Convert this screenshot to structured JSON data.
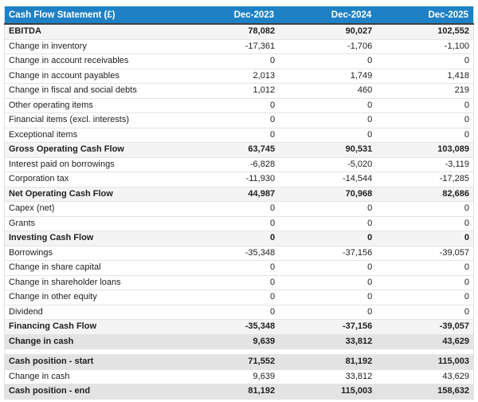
{
  "colors": {
    "header_bg": "#1e81c6",
    "header_text": "#ffffff",
    "subtotal_row_bg": "#f4f4f4",
    "highlight_row_bg": "#e3e3e3",
    "body_text": "#212121",
    "row_border": "#e4e4e4"
  },
  "table": {
    "header": {
      "title": "Cash Flow Statement (£)",
      "columns": [
        "Dec-2023",
        "Dec-2024",
        "Dec-2025"
      ]
    },
    "rows": [
      {
        "label": "EBITDA",
        "values": [
          "78,082",
          "90,027",
          "102,552"
        ],
        "style": "subtotal"
      },
      {
        "label": "Change in inventory",
        "values": [
          "-17,361",
          "-1,706",
          "-1,100"
        ],
        "style": "normal"
      },
      {
        "label": "Change in account receivables",
        "values": [
          "0",
          "0",
          "0"
        ],
        "style": "normal"
      },
      {
        "label": "Change in account payables",
        "values": [
          "2,013",
          "1,749",
          "1,418"
        ],
        "style": "normal"
      },
      {
        "label": "Change in fiscal and social debts",
        "values": [
          "1,012",
          "460",
          "219"
        ],
        "style": "normal"
      },
      {
        "label": "Other operating items",
        "values": [
          "0",
          "0",
          "0"
        ],
        "style": "normal"
      },
      {
        "label": "Financial items (excl. interests)",
        "values": [
          "0",
          "0",
          "0"
        ],
        "style": "normal"
      },
      {
        "label": "Exceptional items",
        "values": [
          "0",
          "0",
          "0"
        ],
        "style": "normal"
      },
      {
        "label": "Gross Operating Cash Flow",
        "values": [
          "63,745",
          "90,531",
          "103,089"
        ],
        "style": "subtotal"
      },
      {
        "label": "Interest paid on borrowings",
        "values": [
          "-6,828",
          "-5,020",
          "-3,119"
        ],
        "style": "normal"
      },
      {
        "label": "Corporation tax",
        "values": [
          "-11,930",
          "-14,544",
          "-17,285"
        ],
        "style": "normal"
      },
      {
        "label": "Net Operating Cash Flow",
        "values": [
          "44,987",
          "70,968",
          "82,686"
        ],
        "style": "subtotal"
      },
      {
        "label": "Capex (net)",
        "values": [
          "0",
          "0",
          "0"
        ],
        "style": "normal"
      },
      {
        "label": "Grants",
        "values": [
          "0",
          "0",
          "0"
        ],
        "style": "normal"
      },
      {
        "label": "Investing Cash Flow",
        "values": [
          "0",
          "0",
          "0"
        ],
        "style": "subtotal"
      },
      {
        "label": "Borrowings",
        "values": [
          "-35,348",
          "-37,156",
          "-39,057"
        ],
        "style": "normal"
      },
      {
        "label": "Change in share capital",
        "values": [
          "0",
          "0",
          "0"
        ],
        "style": "normal"
      },
      {
        "label": "Change in shareholder loans",
        "values": [
          "0",
          "0",
          "0"
        ],
        "style": "normal"
      },
      {
        "label": "Change in other equity",
        "values": [
          "0",
          "0",
          "0"
        ],
        "style": "normal"
      },
      {
        "label": "Dividend",
        "values": [
          "0",
          "0",
          "0"
        ],
        "style": "normal"
      },
      {
        "label": "Financing Cash Flow",
        "values": [
          "-35,348",
          "-37,156",
          "-39,057"
        ],
        "style": "subtotal"
      },
      {
        "label": "Change in cash",
        "values": [
          "9,639",
          "33,812",
          "43,629"
        ],
        "style": "highlight"
      },
      {
        "type": "spacer"
      },
      {
        "label": "Cash position - start",
        "values": [
          "71,552",
          "81,192",
          "115,003"
        ],
        "style": "highlight"
      },
      {
        "label": "Change in cash",
        "values": [
          "9,639",
          "33,812",
          "43,629"
        ],
        "style": "normal"
      },
      {
        "label": "Cash position - end",
        "values": [
          "81,192",
          "115,003",
          "158,632"
        ],
        "style": "highlight"
      }
    ]
  },
  "chart_data": {
    "type": "table",
    "title": "Cash Flow Statement (£)",
    "categories": [
      "Dec-2023",
      "Dec-2024",
      "Dec-2025"
    ],
    "series": [
      {
        "name": "EBITDA",
        "values": [
          78082,
          90027,
          102552
        ]
      },
      {
        "name": "Change in inventory",
        "values": [
          -17361,
          -1706,
          -1100
        ]
      },
      {
        "name": "Change in account receivables",
        "values": [
          0,
          0,
          0
        ]
      },
      {
        "name": "Change in account payables",
        "values": [
          2013,
          1749,
          1418
        ]
      },
      {
        "name": "Change in fiscal and social debts",
        "values": [
          1012,
          460,
          219
        ]
      },
      {
        "name": "Other operating items",
        "values": [
          0,
          0,
          0
        ]
      },
      {
        "name": "Financial items (excl. interests)",
        "values": [
          0,
          0,
          0
        ]
      },
      {
        "name": "Exceptional items",
        "values": [
          0,
          0,
          0
        ]
      },
      {
        "name": "Gross Operating Cash Flow",
        "values": [
          63745,
          90531,
          103089
        ]
      },
      {
        "name": "Interest paid on borrowings",
        "values": [
          -6828,
          -5020,
          -3119
        ]
      },
      {
        "name": "Corporation tax",
        "values": [
          -11930,
          -14544,
          -17285
        ]
      },
      {
        "name": "Net Operating Cash Flow",
        "values": [
          44987,
          70968,
          82686
        ]
      },
      {
        "name": "Capex (net)",
        "values": [
          0,
          0,
          0
        ]
      },
      {
        "name": "Grants",
        "values": [
          0,
          0,
          0
        ]
      },
      {
        "name": "Investing Cash Flow",
        "values": [
          0,
          0,
          0
        ]
      },
      {
        "name": "Borrowings",
        "values": [
          -35348,
          -37156,
          -39057
        ]
      },
      {
        "name": "Change in share capital",
        "values": [
          0,
          0,
          0
        ]
      },
      {
        "name": "Change in shareholder loans",
        "values": [
          0,
          0,
          0
        ]
      },
      {
        "name": "Change in other equity",
        "values": [
          0,
          0,
          0
        ]
      },
      {
        "name": "Dividend",
        "values": [
          0,
          0,
          0
        ]
      },
      {
        "name": "Financing Cash Flow",
        "values": [
          -35348,
          -37156,
          -39057
        ]
      },
      {
        "name": "Change in cash",
        "values": [
          9639,
          33812,
          43629
        ]
      },
      {
        "name": "Cash position - start",
        "values": [
          71552,
          81192,
          115003
        ]
      },
      {
        "name": "Change in cash",
        "values": [
          9639,
          33812,
          43629
        ]
      },
      {
        "name": "Cash position - end",
        "values": [
          81192,
          115003,
          158632
        ]
      }
    ]
  }
}
